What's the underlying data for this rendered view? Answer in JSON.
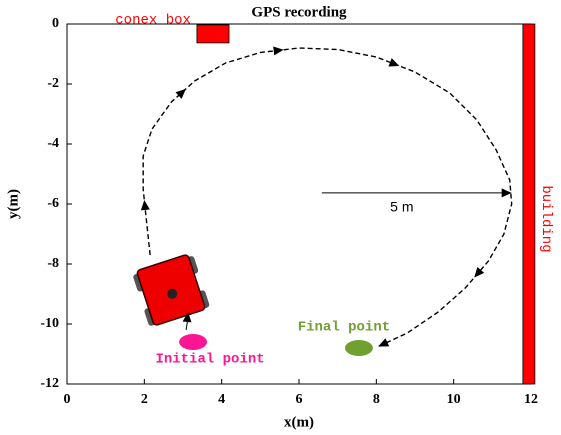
{
  "chart_data": {
    "type": "line",
    "title": "GPS recording",
    "xlabel": "x(m)",
    "ylabel": "y(m)",
    "xlim": [
      0,
      12
    ],
    "ylim": [
      -12,
      0
    ],
    "xticks": [
      0,
      2,
      4,
      6,
      8,
      10,
      12
    ],
    "yticks": [
      -12,
      -10,
      -8,
      -6,
      -4,
      -2,
      0
    ],
    "x": [
      2.15,
      2.05,
      1.97,
      1.97,
      2.2,
      2.7,
      3.3,
      4.1,
      5.0,
      6.0,
      7.0,
      8.0,
      9.0,
      9.9,
      10.6,
      11.1,
      11.45,
      11.5,
      11.3,
      10.9,
      10.3,
      9.6,
      8.8,
      8.05
    ],
    "values": [
      -7.7,
      -6.5,
      -5.5,
      -4.4,
      -3.5,
      -2.6,
      -1.9,
      -1.3,
      -0.95,
      -0.8,
      -0.85,
      -1.1,
      -1.6,
      -2.3,
      -3.2,
      -4.2,
      -5.2,
      -6.0,
      -7.0,
      -7.9,
      -8.8,
      -9.6,
      -10.3,
      -10.75
    ],
    "color": "#000000",
    "conex_box": {
      "label": "conex box",
      "x": [
        3.36,
        4.19
      ],
      "y": [
        -0.63,
        -0.03
      ],
      "color": "#ff0000"
    },
    "building": {
      "label": "building",
      "x": [
        11.79,
        12.1
      ],
      "y": [
        -12,
        0
      ],
      "color": "#ff0000"
    },
    "initial_point": {
      "label": "Initial point",
      "x": 3.26,
      "y": -10.6,
      "color": "#ff1493"
    },
    "final_point": {
      "label": "Final point",
      "x": 7.55,
      "y": -10.8,
      "color": "#6fa030"
    },
    "radius": {
      "label": "5 m",
      "x": [
        6.59,
        11.5
      ],
      "y": -5.63
    }
  }
}
